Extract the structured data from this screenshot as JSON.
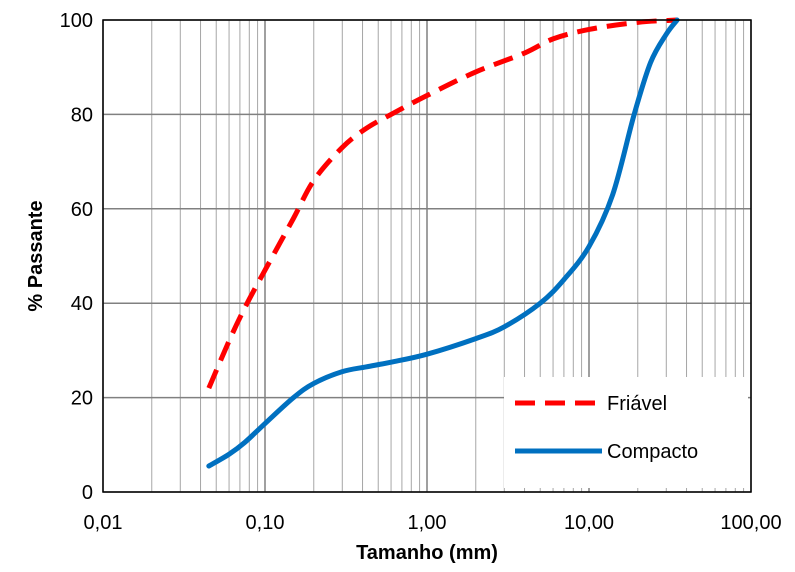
{
  "chart_data": {
    "type": "line",
    "title": "",
    "xlabel": "Tamanho (mm)",
    "ylabel": "% Passante",
    "x_scale": "log",
    "xlim": [
      0.01,
      100
    ],
    "ylim": [
      0,
      100
    ],
    "x_ticks": [
      0.01,
      0.1,
      1,
      10,
      100
    ],
    "x_tick_labels": [
      "0,01",
      "0,10",
      "1,00",
      "10,00",
      "100,00"
    ],
    "y_ticks": [
      0,
      20,
      40,
      60,
      80,
      100
    ],
    "y_tick_labels": [
      "0",
      "20",
      "40",
      "60",
      "80",
      "100"
    ],
    "grid": true,
    "legend_position": "bottom-right",
    "series": [
      {
        "name": "Friável",
        "color": "#ff0000",
        "style": "dashed",
        "x": [
          0.045,
          0.06,
          0.075,
          0.1,
          0.15,
          0.2,
          0.3,
          0.42,
          0.6,
          1.0,
          2.0,
          4.0,
          6.0,
          10,
          20,
          35
        ],
        "y": [
          22,
          32,
          39,
          47,
          58,
          66,
          73,
          77,
          80,
          84,
          89,
          93,
          96,
          98,
          99.5,
          100
        ]
      },
      {
        "name": "Compacto",
        "color": "#0070c0",
        "style": "solid",
        "x": [
          0.045,
          0.06,
          0.075,
          0.1,
          0.15,
          0.2,
          0.3,
          0.42,
          0.6,
          1.0,
          2.0,
          3.0,
          5.0,
          7.0,
          10,
          14,
          19,
          24,
          30,
          35
        ],
        "y": [
          5.5,
          8,
          10.5,
          14.5,
          20,
          23,
          25.5,
          26.5,
          27.5,
          29.2,
          32.5,
          35,
          40,
          45,
          52,
          63,
          80,
          91,
          97,
          100
        ]
      }
    ]
  }
}
